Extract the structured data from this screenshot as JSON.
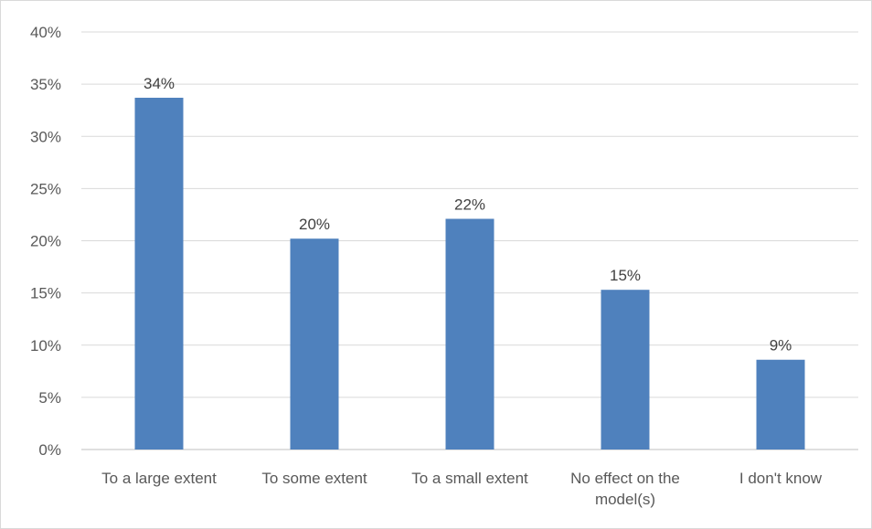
{
  "chart_data": {
    "type": "bar",
    "categories": [
      [
        "To a large extent"
      ],
      [
        "To some extent"
      ],
      [
        "To a small extent"
      ],
      [
        "No effect on the",
        "model(s)"
      ],
      [
        "I don't know"
      ]
    ],
    "values": [
      34,
      20,
      22,
      15,
      9
    ],
    "bar_heights": [
      33.7,
      20.2,
      22.1,
      15.3,
      8.6
    ],
    "data_labels": [
      "34%",
      "20%",
      "22%",
      "15%",
      "9%"
    ],
    "y_ticks": [
      "0%",
      "5%",
      "10%",
      "15%",
      "20%",
      "25%",
      "30%",
      "35%",
      "40%"
    ],
    "ylim": [
      0,
      40
    ],
    "grid": true,
    "colors": {
      "bar": "#4f81bd",
      "grid": "#d9d9d9",
      "axis": "#bfbfbf"
    }
  }
}
